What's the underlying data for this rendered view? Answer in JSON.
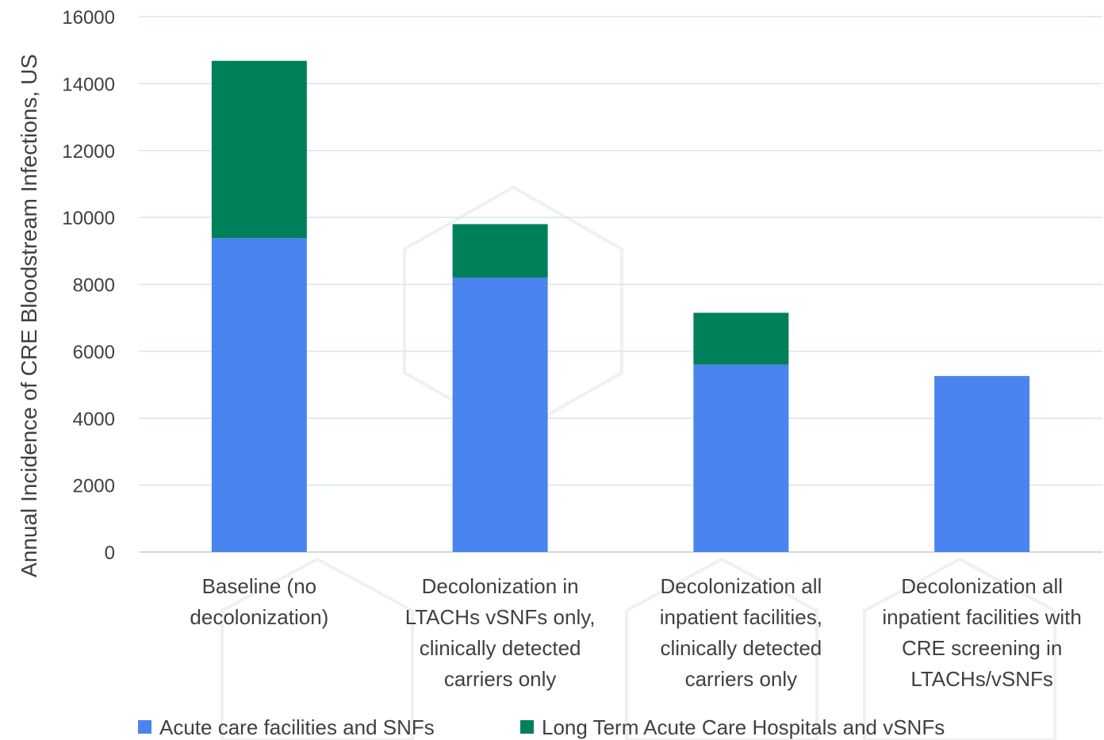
{
  "chart_data": {
    "type": "bar",
    "stacked": true,
    "title": "",
    "xlabel": "",
    "ylabel": "Annual Incidence of CRE Bloodstream Infections, US",
    "ylim": [
      0,
      16000
    ],
    "yticks": [
      0,
      2000,
      4000,
      6000,
      8000,
      10000,
      12000,
      14000,
      16000
    ],
    "grid": true,
    "legend_position": "bottom",
    "categories": [
      [
        "Baseline (no",
        "decolonization)"
      ],
      [
        "Decolonization in",
        "LTACHs vSNFs only,",
        "clinically detected",
        "carriers only"
      ],
      [
        "Decolonization all",
        "inpatient facilities,",
        "clinically detected",
        "carriers only"
      ],
      [
        "Decolonization all",
        "inpatient facilities with",
        "CRE screening in",
        "LTACHs/vSNFs"
      ]
    ],
    "series": [
      {
        "name": "Acute care facilities and SNFs",
        "color": "#4a84ef",
        "values": [
          9380,
          8200,
          5600,
          5260
        ]
      },
      {
        "name": "Long Term Acute Care Hospitals and vSNFs",
        "color": "#00805a",
        "values": [
          5300,
          1600,
          1550,
          0
        ]
      }
    ]
  }
}
